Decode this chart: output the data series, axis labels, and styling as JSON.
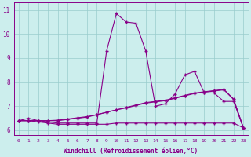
{
  "xlabel": "Windchill (Refroidissement éolien,°C)",
  "background_color": "#cceeed",
  "line_color": "#880088",
  "grid_color": "#99cccc",
  "xlim": [
    -0.5,
    23.5
  ],
  "ylim": [
    5.8,
    11.3
  ],
  "xticks": [
    0,
    1,
    2,
    3,
    4,
    5,
    6,
    7,
    8,
    9,
    10,
    11,
    12,
    13,
    14,
    15,
    16,
    17,
    18,
    19,
    20,
    21,
    22,
    23
  ],
  "yticks": [
    6,
    7,
    8,
    9,
    10,
    11
  ],
  "line1": [
    6.4,
    6.5,
    6.4,
    6.35,
    6.3,
    6.3,
    6.3,
    6.3,
    6.3,
    9.3,
    10.85,
    10.5,
    10.45,
    9.3,
    7.0,
    7.1,
    7.5,
    8.3,
    8.45,
    7.55,
    7.55,
    7.2,
    7.2,
    6.1
  ],
  "line2": [
    6.4,
    6.4,
    6.35,
    6.3,
    6.25,
    6.25,
    6.25,
    6.25,
    6.25,
    6.25,
    6.3,
    6.3,
    6.3,
    6.3,
    6.3,
    6.3,
    6.3,
    6.3,
    6.3,
    6.3,
    6.3,
    6.3,
    6.3,
    6.1
  ],
  "line3": [
    6.4,
    6.4,
    6.4,
    6.4,
    6.4,
    6.45,
    6.5,
    6.55,
    6.65,
    6.75,
    6.85,
    6.95,
    7.05,
    7.15,
    7.2,
    7.25,
    7.35,
    7.45,
    7.55,
    7.6,
    7.65,
    7.7,
    7.3,
    6.1
  ],
  "line4": [
    6.4,
    6.4,
    6.4,
    6.4,
    6.42,
    6.47,
    6.52,
    6.57,
    6.65,
    6.75,
    6.85,
    6.93,
    7.03,
    7.13,
    7.18,
    7.23,
    7.33,
    7.43,
    7.53,
    7.58,
    7.63,
    7.68,
    7.28,
    6.1
  ]
}
